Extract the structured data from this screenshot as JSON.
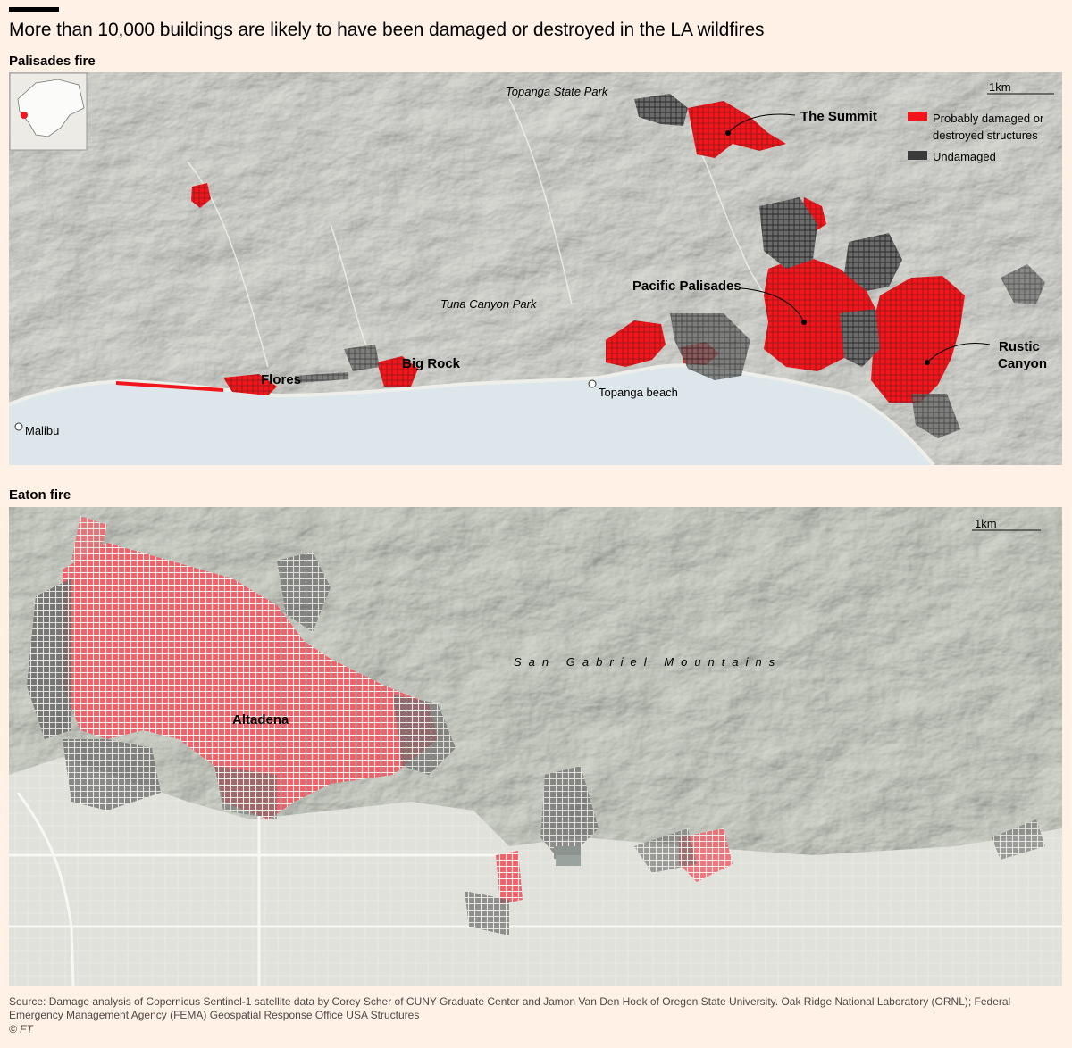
{
  "title": "More than 10,000 buildings are likely to have been damaged or destroyed in the LA wildfires",
  "maps": {
    "palisades": {
      "heading": "Palisades fire",
      "scale_label": "1km",
      "places": {
        "summit": "The Summit",
        "pacific_palisades": "Pacific Palisades",
        "rustic_1": "Rustic",
        "rustic_2": "Canyon",
        "flores": "Flores",
        "big_rock": "Big Rock",
        "topanga_beach": "Topanga beach",
        "malibu": "Malibu"
      },
      "parks": {
        "topanga_state_park": "Topanga State Park",
        "tuna_canyon_park": "Tuna Canyon Park"
      }
    },
    "eaton": {
      "heading": "Eaton fire",
      "scale_label": "1km",
      "places": {
        "altadena": "Altadena"
      },
      "ranges": {
        "san_gabriel": "San Gabriel Mountains"
      }
    }
  },
  "legend": {
    "damaged_line1": "Probably damaged or",
    "damaged_line2": "destroyed structures",
    "undamaged": "Undamaged",
    "damaged_color": "#f2151b",
    "undamaged_color": "#3a3a3c"
  },
  "colors": {
    "background": "#fff1e5",
    "water": "#dde6ea",
    "terrain": "#d3d5cf"
  },
  "source": "Source: Damage analysis of Copernicus Sentinel-1 satellite data by Corey Scher of CUNY Graduate Center and Jamon Van Den Hoek of Oregon State University. Oak Ridge National Laboratory (ORNL); Federal Emergency Management Agency (FEMA) Geospatial Response Office USA Structures",
  "credit": "© FT"
}
